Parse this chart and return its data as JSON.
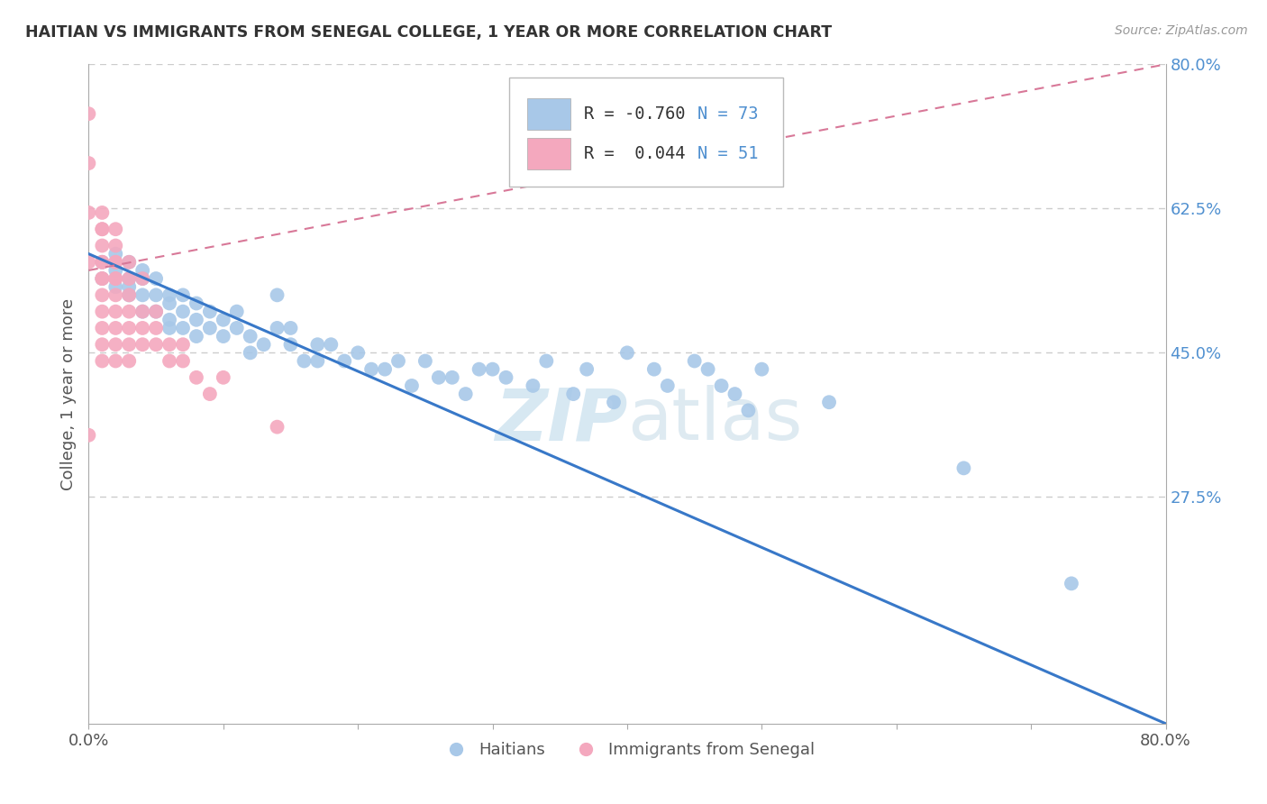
{
  "title": "HAITIAN VS IMMIGRANTS FROM SENEGAL COLLEGE, 1 YEAR OR MORE CORRELATION CHART",
  "source_text": "Source: ZipAtlas.com",
  "ylabel": "College, 1 year or more",
  "watermark": "ZIPatlas",
  "xmin": 0.0,
  "xmax": 0.8,
  "ymin": 0.0,
  "ymax": 0.8,
  "legend_label_blue": "Haitians",
  "legend_label_pink": "Immigrants from Senegal",
  "blue_color": "#a8c8e8",
  "pink_color": "#f4a8be",
  "blue_line_color": "#3878c8",
  "pink_line_color": "#d87898",
  "background_color": "#ffffff",
  "grid_color": "#cccccc",
  "blue_line_x": [
    0.0,
    0.8
  ],
  "blue_line_y": [
    0.57,
    0.0
  ],
  "pink_line_x": [
    0.0,
    0.8
  ],
  "pink_line_y": [
    0.55,
    0.8
  ],
  "blue_scatter_x": [
    0.01,
    0.01,
    0.02,
    0.02,
    0.02,
    0.03,
    0.03,
    0.03,
    0.03,
    0.04,
    0.04,
    0.04,
    0.04,
    0.05,
    0.05,
    0.05,
    0.06,
    0.06,
    0.06,
    0.06,
    0.07,
    0.07,
    0.07,
    0.08,
    0.08,
    0.08,
    0.09,
    0.09,
    0.1,
    0.1,
    0.11,
    0.11,
    0.12,
    0.12,
    0.13,
    0.14,
    0.14,
    0.15,
    0.15,
    0.16,
    0.17,
    0.17,
    0.18,
    0.19,
    0.2,
    0.21,
    0.22,
    0.23,
    0.24,
    0.25,
    0.26,
    0.27,
    0.28,
    0.29,
    0.3,
    0.31,
    0.33,
    0.34,
    0.36,
    0.37,
    0.39,
    0.4,
    0.42,
    0.43,
    0.45,
    0.46,
    0.47,
    0.48,
    0.49,
    0.5,
    0.55,
    0.65,
    0.73
  ],
  "blue_scatter_y": [
    0.56,
    0.54,
    0.55,
    0.53,
    0.57,
    0.54,
    0.52,
    0.56,
    0.53,
    0.54,
    0.52,
    0.5,
    0.55,
    0.52,
    0.5,
    0.54,
    0.51,
    0.49,
    0.52,
    0.48,
    0.5,
    0.48,
    0.52,
    0.49,
    0.47,
    0.51,
    0.48,
    0.5,
    0.47,
    0.49,
    0.48,
    0.5,
    0.47,
    0.45,
    0.46,
    0.48,
    0.52,
    0.46,
    0.48,
    0.44,
    0.46,
    0.44,
    0.46,
    0.44,
    0.45,
    0.43,
    0.43,
    0.44,
    0.41,
    0.44,
    0.42,
    0.42,
    0.4,
    0.43,
    0.43,
    0.42,
    0.41,
    0.44,
    0.4,
    0.43,
    0.39,
    0.45,
    0.43,
    0.41,
    0.44,
    0.43,
    0.41,
    0.4,
    0.38,
    0.43,
    0.39,
    0.31,
    0.17
  ],
  "pink_scatter_x": [
    0.0,
    0.0,
    0.0,
    0.0,
    0.01,
    0.01,
    0.01,
    0.01,
    0.01,
    0.01,
    0.01,
    0.01,
    0.01,
    0.01,
    0.01,
    0.01,
    0.01,
    0.02,
    0.02,
    0.02,
    0.02,
    0.02,
    0.02,
    0.02,
    0.02,
    0.02,
    0.02,
    0.02,
    0.03,
    0.03,
    0.03,
    0.03,
    0.03,
    0.03,
    0.03,
    0.04,
    0.04,
    0.04,
    0.04,
    0.05,
    0.05,
    0.05,
    0.06,
    0.06,
    0.07,
    0.07,
    0.08,
    0.09,
    0.1,
    0.14,
    0.0
  ],
  "pink_scatter_y": [
    0.74,
    0.68,
    0.62,
    0.56,
    0.62,
    0.6,
    0.58,
    0.56,
    0.54,
    0.52,
    0.5,
    0.48,
    0.46,
    0.54,
    0.56,
    0.44,
    0.6,
    0.56,
    0.54,
    0.52,
    0.5,
    0.48,
    0.46,
    0.58,
    0.6,
    0.44,
    0.56,
    0.54,
    0.52,
    0.5,
    0.48,
    0.46,
    0.54,
    0.56,
    0.44,
    0.5,
    0.48,
    0.54,
    0.46,
    0.48,
    0.46,
    0.5,
    0.46,
    0.44,
    0.46,
    0.44,
    0.42,
    0.4,
    0.42,
    0.36,
    0.35
  ]
}
